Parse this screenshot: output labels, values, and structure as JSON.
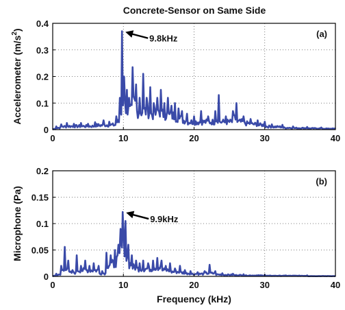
{
  "chart_data": [
    {
      "type": "line",
      "title": "Concrete-Sensor on Same Side",
      "panel_label": "(a)",
      "xlabel": "",
      "ylabel": "Accelerometer (m/s²)",
      "ylabel_main": "Accelerometer (m/s",
      "ylabel_sup": "2",
      "ylabel_tail": ")",
      "xlim": [
        0,
        40
      ],
      "ylim": [
        0,
        0.4
      ],
      "xticks": [
        0,
        10,
        20,
        30,
        40
      ],
      "xtick_labels": [
        "0",
        "10",
        "20",
        "30",
        "40"
      ],
      "yticks": [
        0,
        0.1,
        0.2,
        0.3,
        0.4
      ],
      "ytick_labels": [
        "0",
        "0.1",
        "0.2",
        "0.3",
        "0.4"
      ],
      "grid": true,
      "color": "#3a4aa8",
      "annotation": {
        "text": "9.8kHz",
        "x": 9.8,
        "y": 0.37
      },
      "peaks": [
        [
          0.5,
          0.012
        ],
        [
          1.2,
          0.02
        ],
        [
          2.0,
          0.025
        ],
        [
          3.0,
          0.022
        ],
        [
          4.0,
          0.025
        ],
        [
          5.0,
          0.022
        ],
        [
          6.0,
          0.028
        ],
        [
          7.2,
          0.035
        ],
        [
          8.0,
          0.03
        ],
        [
          9.0,
          0.05
        ],
        [
          9.5,
          0.12
        ],
        [
          9.8,
          0.37
        ],
        [
          10.1,
          0.2
        ],
        [
          10.5,
          0.15
        ],
        [
          10.8,
          0.12
        ],
        [
          11.3,
          0.235
        ],
        [
          11.8,
          0.17
        ],
        [
          12.3,
          0.12
        ],
        [
          12.8,
          0.21
        ],
        [
          13.3,
          0.12
        ],
        [
          13.8,
          0.16
        ],
        [
          14.3,
          0.1
        ],
        [
          14.8,
          0.12
        ],
        [
          15.3,
          0.15
        ],
        [
          15.8,
          0.1
        ],
        [
          16.3,
          0.12
        ],
        [
          16.8,
          0.09
        ],
        [
          17.3,
          0.1
        ],
        [
          17.8,
          0.08
        ],
        [
          18.3,
          0.07
        ],
        [
          19.0,
          0.06
        ],
        [
          20.0,
          0.05
        ],
        [
          21.0,
          0.07
        ],
        [
          22.0,
          0.05
        ],
        [
          23.0,
          0.07
        ],
        [
          23.5,
          0.13
        ],
        [
          24.5,
          0.05
        ],
        [
          25.5,
          0.07
        ],
        [
          26.0,
          0.1
        ],
        [
          27.0,
          0.05
        ],
        [
          28.0,
          0.04
        ],
        [
          29.0,
          0.035
        ],
        [
          30.0,
          0.03
        ],
        [
          31.0,
          0.02
        ],
        [
          32.5,
          0.018
        ],
        [
          34.0,
          0.012
        ],
        [
          36.0,
          0.01
        ],
        [
          38.0,
          0.008
        ],
        [
          40.0,
          0.006
        ]
      ]
    },
    {
      "type": "line",
      "title": "",
      "panel_label": "(b)",
      "xlabel": "Frequency (kHz)",
      "ylabel": "Microphone (Pa)",
      "xlim": [
        0,
        40
      ],
      "ylim": [
        0,
        0.2
      ],
      "xticks": [
        0,
        10,
        20,
        30,
        40
      ],
      "xtick_labels": [
        "0",
        "10",
        "20",
        "30",
        "40"
      ],
      "yticks": [
        0,
        0.05,
        0.1,
        0.15,
        0.2
      ],
      "ytick_labels": [
        "0",
        "0.05",
        "0.1",
        "0.15",
        "0.2"
      ],
      "grid": true,
      "color": "#3a4aa8",
      "annotation": {
        "text": "9.9kHz",
        "x": 9.9,
        "y": 0.122
      },
      "peaks": [
        [
          0.5,
          0.005
        ],
        [
          1.2,
          0.02
        ],
        [
          1.7,
          0.056
        ],
        [
          2.2,
          0.03
        ],
        [
          2.8,
          0.012
        ],
        [
          3.4,
          0.04
        ],
        [
          4.0,
          0.02
        ],
        [
          4.6,
          0.03
        ],
        [
          5.2,
          0.02
        ],
        [
          5.8,
          0.025
        ],
        [
          6.5,
          0.02
        ],
        [
          7.0,
          0.01
        ],
        [
          7.6,
          0.045
        ],
        [
          8.2,
          0.04
        ],
        [
          8.8,
          0.05
        ],
        [
          9.3,
          0.06
        ],
        [
          9.6,
          0.09
        ],
        [
          9.9,
          0.122
        ],
        [
          10.3,
          0.105
        ],
        [
          10.7,
          0.06
        ],
        [
          11.2,
          0.04
        ],
        [
          11.8,
          0.03
        ],
        [
          12.3,
          0.025
        ],
        [
          12.8,
          0.03
        ],
        [
          13.5,
          0.025
        ],
        [
          14.2,
          0.03
        ],
        [
          14.8,
          0.035
        ],
        [
          15.4,
          0.03
        ],
        [
          16.0,
          0.02
        ],
        [
          16.6,
          0.025
        ],
        [
          17.3,
          0.015
        ],
        [
          18.0,
          0.02
        ],
        [
          18.7,
          0.012
        ],
        [
          19.5,
          0.01
        ],
        [
          20.5,
          0.008
        ],
        [
          21.5,
          0.01
        ],
        [
          22.2,
          0.022
        ],
        [
          23.0,
          0.01
        ],
        [
          24.0,
          0.006
        ],
        [
          25.5,
          0.005
        ],
        [
          27.0,
          0.004
        ],
        [
          30.0,
          0.003
        ],
        [
          33.0,
          0.002
        ],
        [
          36.0,
          0.002
        ],
        [
          40.0,
          0.001
        ]
      ]
    }
  ]
}
